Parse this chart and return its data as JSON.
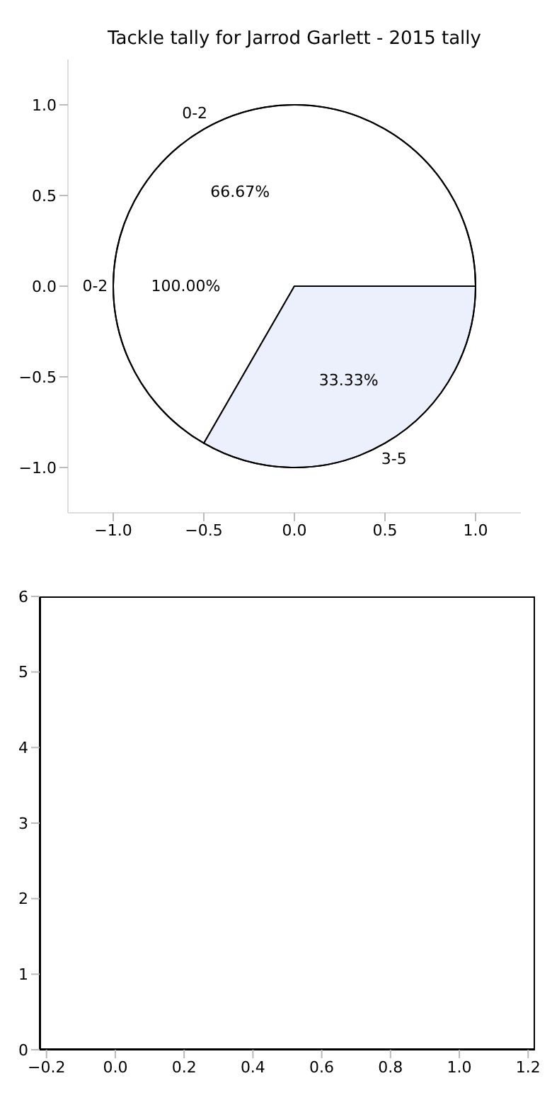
{
  "chart_data": [
    {
      "type": "line",
      "title": "Tackle tally for Jarrod Garlett - 2015 tally",
      "xlim": [
        -1.25,
        1.25
      ],
      "ylim": [
        -1.25,
        1.25
      ],
      "xticks": [
        {
          "value": -1,
          "label": "−1.0"
        },
        {
          "value": -0.5,
          "label": "−0.5"
        },
        {
          "value": 0,
          "label": "0.0"
        },
        {
          "value": 0.5,
          "label": "0.5"
        },
        {
          "value": 1,
          "label": "1.0"
        }
      ],
      "yticks": [
        {
          "value": -1,
          "label": "−1.0"
        },
        {
          "value": -0.5,
          "label": "−0.5"
        },
        {
          "value": 0,
          "label": "0.0"
        },
        {
          "value": 0.5,
          "label": "0.5"
        },
        {
          "value": 1,
          "label": "1.0"
        }
      ]
    },
    {
      "type": "pie",
      "categories": [
        "0-2"
      ],
      "values": [
        100
      ],
      "colors": [
        "#ffffff"
      ],
      "value_labels": [
        "100.00%"
      ]
    },
    {
      "type": "pie",
      "categories": [
        "0-2",
        "3-5"
      ],
      "values": [
        66.67,
        33.33
      ],
      "colors": [
        "#ffffff",
        "#ebf0fc"
      ],
      "value_labels": [
        "66.67%",
        "33.33%"
      ]
    },
    {
      "type": "line",
      "xlim": [
        -0.22,
        1.22
      ],
      "ylim": [
        0,
        6
      ],
      "xticks": [
        {
          "value": -0.2,
          "label": "−0.2"
        },
        {
          "value": 0,
          "label": "0.0"
        },
        {
          "value": 0.2,
          "label": "0.2"
        },
        {
          "value": 0.4,
          "label": "0.4"
        },
        {
          "value": 0.6,
          "label": "0.6"
        },
        {
          "value": 0.8,
          "label": "0.8"
        },
        {
          "value": 1,
          "label": "1.0"
        },
        {
          "value": 1.2,
          "label": "1.2"
        }
      ],
      "yticks": [
        0,
        1,
        2,
        3,
        4,
        5,
        6
      ]
    }
  ]
}
